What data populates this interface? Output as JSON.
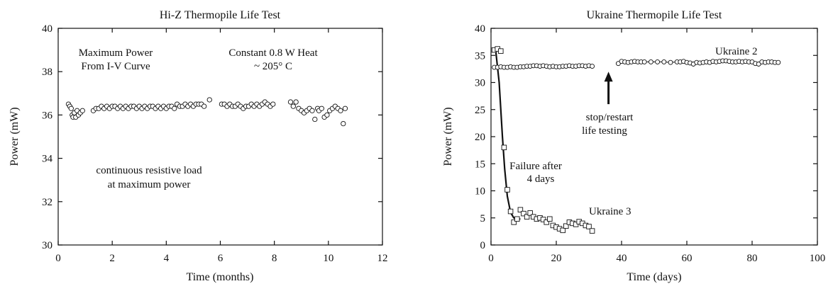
{
  "chart_data": [
    {
      "type": "scatter",
      "title": "Hi-Z Thermopile Life Test",
      "xlabel": "Time (months)",
      "ylabel": "Power (mW)",
      "xlim": [
        0,
        12
      ],
      "ylim": [
        30,
        40
      ],
      "xticks": [
        0,
        2,
        4,
        6,
        8,
        10,
        12
      ],
      "yticks": [
        30,
        32,
        34,
        36,
        38,
        40
      ],
      "grid": false,
      "annotations": [
        "Maximum Power",
        "From I-V Curve",
        "Constant 0.8 W Heat",
        "~ 205° C",
        "continuous resistive load",
        "at maximum power"
      ],
      "series": [
        {
          "marker": "open-circle",
          "x": [
            0.38,
            0.43,
            0.48,
            0.52,
            0.55,
            0.6,
            0.65,
            0.7,
            0.75,
            0.82,
            0.9,
            1.3,
            1.4,
            1.5,
            1.6,
            1.7,
            1.8,
            1.9,
            2.0,
            2.1,
            2.2,
            2.3,
            2.4,
            2.5,
            2.6,
            2.7,
            2.8,
            2.9,
            3.0,
            3.1,
            3.2,
            3.3,
            3.4,
            3.5,
            3.6,
            3.7,
            3.8,
            3.9,
            4.0,
            4.1,
            4.2,
            4.3,
            4.4,
            4.5,
            4.6,
            4.7,
            4.8,
            4.9,
            5.0,
            5.1,
            5.2,
            5.3,
            5.4,
            5.6,
            6.05,
            6.15,
            6.25,
            6.35,
            6.45,
            6.55,
            6.65,
            6.75,
            6.85,
            6.95,
            7.05,
            7.15,
            7.25,
            7.35,
            7.45,
            7.55,
            7.65,
            7.75,
            7.85,
            7.95,
            8.6,
            8.7,
            8.8,
            8.9,
            9.0,
            9.1,
            9.2,
            9.3,
            9.4,
            9.5,
            9.6,
            9.65,
            9.75,
            9.85,
            9.95,
            10.05,
            10.15,
            10.25,
            10.35,
            10.45,
            10.55,
            10.62
          ],
          "y": [
            36.5,
            36.4,
            36.3,
            36.0,
            35.9,
            36.1,
            35.9,
            36.2,
            36.0,
            36.1,
            36.2,
            36.2,
            36.3,
            36.3,
            36.4,
            36.3,
            36.4,
            36.3,
            36.4,
            36.4,
            36.3,
            36.4,
            36.3,
            36.4,
            36.3,
            36.4,
            36.4,
            36.3,
            36.4,
            36.3,
            36.4,
            36.3,
            36.4,
            36.4,
            36.3,
            36.4,
            36.3,
            36.4,
            36.3,
            36.4,
            36.4,
            36.3,
            36.5,
            36.4,
            36.4,
            36.5,
            36.4,
            36.5,
            36.4,
            36.5,
            36.5,
            36.5,
            36.4,
            36.7,
            36.5,
            36.5,
            36.4,
            36.5,
            36.4,
            36.4,
            36.5,
            36.4,
            36.3,
            36.4,
            36.4,
            36.5,
            36.4,
            36.5,
            36.4,
            36.5,
            36.6,
            36.5,
            36.4,
            36.5,
            36.6,
            36.4,
            36.6,
            36.3,
            36.2,
            36.1,
            36.2,
            36.3,
            36.2,
            35.8,
            36.3,
            36.2,
            36.3,
            35.9,
            36.0,
            36.2,
            36.3,
            36.4,
            36.3,
            36.2,
            35.6,
            36.3
          ]
        }
      ]
    },
    {
      "type": "scatter",
      "title": "Ukraine Thermopile Life Test",
      "xlabel": "Time (days)",
      "ylabel": "Power (mW)",
      "xlim": [
        0,
        100
      ],
      "ylim": [
        0,
        40
      ],
      "xticks": [
        0,
        20,
        40,
        60,
        80,
        100
      ],
      "yticks": [
        0,
        5,
        10,
        15,
        20,
        25,
        30,
        35,
        40
      ],
      "grid": false,
      "annotations": [
        "stop/restart",
        "life testing",
        "Failure after",
        "4 days"
      ],
      "arrow_point": {
        "x": 36,
        "y": 32
      },
      "arrow_tail": {
        "x": 36,
        "y": 26
      },
      "series": [
        {
          "name": "Ukraine 2",
          "marker": "open-circle",
          "line": true,
          "segments": [
            {
              "x": [
                1,
                2,
                3,
                4,
                5,
                6,
                7,
                8,
                9,
                10,
                11,
                12,
                13,
                14,
                15,
                16,
                17,
                18,
                19,
                20,
                21,
                22,
                23,
                24,
                25,
                26,
                27,
                28,
                29,
                30,
                31
              ],
              "y": [
                32.8,
                32.8,
                32.9,
                32.8,
                32.8,
                32.9,
                32.8,
                32.8,
                32.9,
                32.9,
                33.0,
                33.0,
                33.1,
                33.1,
                33.0,
                33.1,
                33.0,
                32.9,
                33.0,
                32.9,
                32.9,
                33.0,
                33.0,
                33.1,
                33.0,
                33.0,
                33.1,
                33.1,
                33.0,
                33.1,
                33.0
              ]
            },
            {
              "x": [
                39,
                40,
                41,
                42,
                43,
                44,
                45,
                46,
                47,
                49,
                51,
                53,
                55,
                57,
                58,
                59,
                60,
                61,
                62,
                63,
                64,
                65,
                66,
                67,
                68,
                69,
                70,
                71,
                72,
                73,
                74,
                75,
                76,
                77,
                78,
                79,
                80,
                81,
                82,
                83,
                84,
                85,
                86,
                87,
                88
              ],
              "y": [
                33.5,
                33.9,
                33.8,
                33.7,
                33.8,
                33.9,
                33.8,
                33.8,
                33.8,
                33.8,
                33.8,
                33.8,
                33.7,
                33.8,
                33.8,
                33.9,
                33.7,
                33.6,
                33.4,
                33.7,
                33.6,
                33.7,
                33.8,
                33.7,
                33.9,
                33.8,
                33.9,
                34.0,
                34.0,
                33.9,
                33.8,
                33.8,
                33.9,
                33.8,
                33.9,
                33.8,
                33.8,
                33.5,
                33.4,
                33.8,
                33.7,
                33.8,
                33.8,
                33.7,
                33.7
              ]
            }
          ]
        },
        {
          "name": "Ukraine 3",
          "marker": "open-square",
          "x": [
            1,
            2,
            3,
            4,
            5,
            6,
            7,
            8,
            9,
            10,
            11,
            12,
            13,
            14,
            15,
            16,
            17,
            18,
            19,
            20,
            21,
            22,
            23,
            24,
            25,
            26,
            27,
            28,
            29,
            30,
            31
          ],
          "y": [
            36.0,
            36.2,
            35.8,
            18.0,
            10.2,
            6.2,
            4.2,
            4.8,
            6.5,
            5.8,
            5.2,
            5.9,
            5.2,
            4.8,
            5.0,
            4.7,
            4.2,
            4.8,
            3.6,
            3.3,
            3.0,
            2.7,
            3.5,
            4.2,
            4.0,
            3.8,
            4.3,
            4.0,
            3.6,
            3.4,
            2.6
          ],
          "fit_x": [
            1.5,
            2.5,
            3.5,
            4.2,
            5.0,
            6.0,
            7.0,
            8.0,
            9.0
          ],
          "fit_y": [
            35.6,
            30.0,
            20.0,
            14.0,
            9.0,
            6.0,
            5.0,
            4.8,
            4.8
          ]
        }
      ]
    }
  ]
}
